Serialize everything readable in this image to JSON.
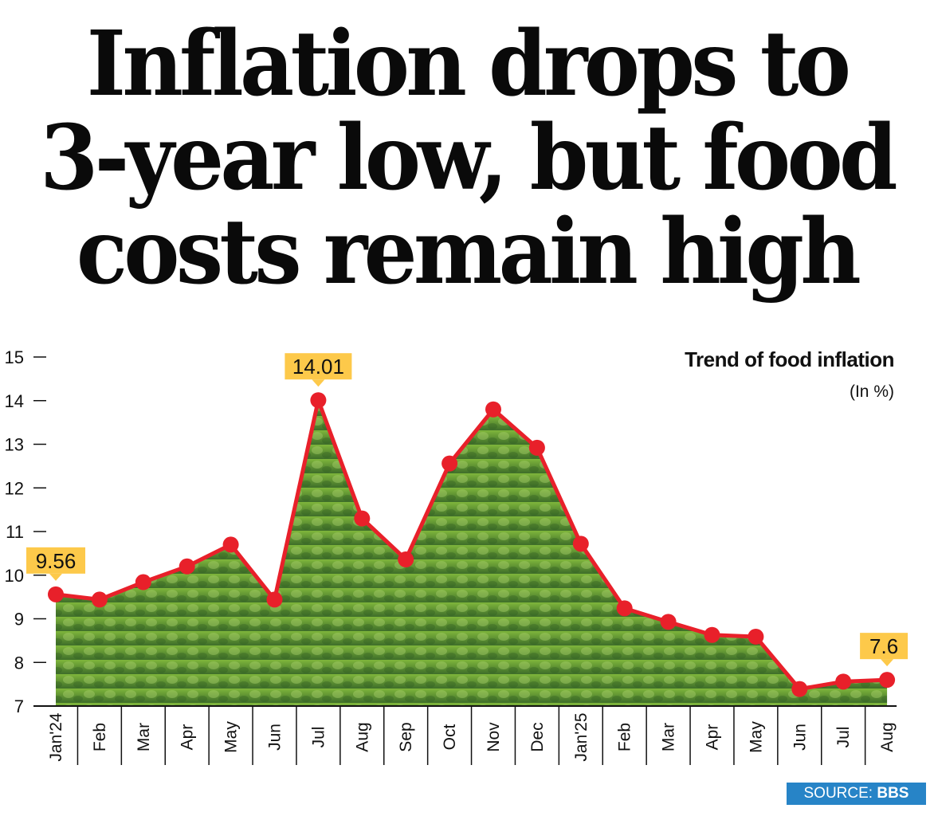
{
  "headline": {
    "lines": [
      "Inflation drops to",
      "3-year low, but food",
      "costs remain high"
    ]
  },
  "source": {
    "prefix": "SOURCE: ",
    "name": "BBS",
    "color": "#2784c7"
  },
  "colors": {
    "line": "#e8202a",
    "callout": "#fdc94a",
    "fill_top": "#7fb63c",
    "fill_bottom": "#3e6e2a"
  },
  "chart_data": {
    "type": "line",
    "title": "Trend of food inflation",
    "subtitle": "(In %)",
    "xlabel": "",
    "ylabel": "",
    "ylim": [
      7,
      15
    ],
    "yticks": [
      7,
      8,
      9,
      10,
      11,
      12,
      13,
      14,
      15
    ],
    "grid": false,
    "categories": [
      "Jan'24",
      "Feb",
      "Mar",
      "Apr",
      "May",
      "Jun",
      "Jul",
      "Aug",
      "Sep",
      "Oct",
      "Nov",
      "Dec",
      "Jan'25",
      "Feb",
      "Mar",
      "Apr",
      "May",
      "Jun",
      "Jul",
      "Aug"
    ],
    "series": [
      {
        "name": "Food inflation",
        "values": [
          9.56,
          9.44,
          9.84,
          10.2,
          10.7,
          9.44,
          14.01,
          11.3,
          10.36,
          12.56,
          13.8,
          12.92,
          10.72,
          9.24,
          8.93,
          8.63,
          8.59,
          7.39,
          7.56,
          7.6
        ]
      }
    ],
    "annotations": [
      {
        "index": 0,
        "label": "9.56"
      },
      {
        "index": 6,
        "label": "14.01"
      },
      {
        "index": 19,
        "label": "7.6"
      }
    ]
  }
}
